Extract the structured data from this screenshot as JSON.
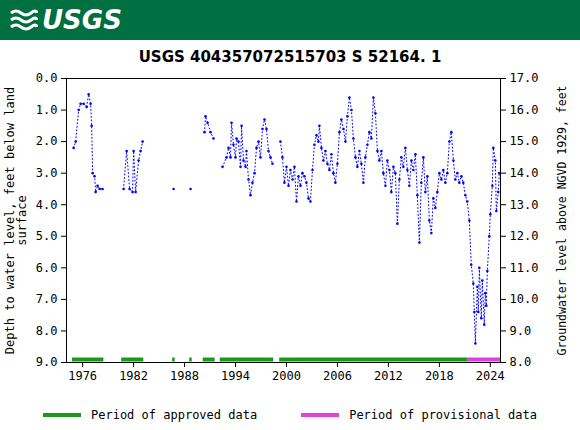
{
  "header": {
    "text": "USGS"
  },
  "chart_data": {
    "type": "line",
    "title": "USGS 404357072515703 S 52164. 1",
    "ylabel": "Depth to water level, feet below land\nsurface",
    "y2label": "Groundwater level above NGVD 1929, feet",
    "color": "#0000ff",
    "marker": "circle",
    "line_style": "dotted",
    "grid": false,
    "legend": "bottom",
    "xlim": [
      1974.1,
      2025.2
    ],
    "xticks": [
      1976,
      1982,
      1988,
      1994,
      2000,
      2006,
      2012,
      2018,
      2024
    ],
    "ylim": [
      9,
      0
    ],
    "yticks": [
      {
        "value": 0,
        "label": "0.0"
      },
      {
        "value": 1,
        "label": "1.0"
      },
      {
        "value": 2,
        "label": "2.0"
      },
      {
        "value": 3,
        "label": "3.0"
      },
      {
        "value": 4,
        "label": "4.0"
      },
      {
        "value": 5,
        "label": "5.0"
      },
      {
        "value": 6,
        "label": "6.0"
      },
      {
        "value": 7,
        "label": "7.0"
      },
      {
        "value": 8,
        "label": "8.0"
      },
      {
        "value": 9,
        "label": "9.0"
      }
    ],
    "y2lim": [
      8,
      17
    ],
    "y2ticks": [
      {
        "value": 8,
        "label": "8.0"
      },
      {
        "value": 9,
        "label": "9.0"
      },
      {
        "value": 10,
        "label": "10.0"
      },
      {
        "value": 11,
        "label": "11.0"
      },
      {
        "value": 12,
        "label": "12.0"
      },
      {
        "value": 13,
        "label": "13.0"
      },
      {
        "value": 14,
        "label": "14.0"
      },
      {
        "value": 15,
        "label": "15.0"
      },
      {
        "value": 16,
        "label": "16.0"
      },
      {
        "value": 17,
        "label": "17.0"
      }
    ],
    "x": [
      1974.94,
      1975.18,
      1975.53,
      1975.76,
      1976.12,
      1976.47,
      1976.71,
      1976.94,
      1977.06,
      1977.18,
      1977.41,
      1977.53,
      1977.76,
      1978.0,
      1978.35,
      1979.5,
      1980.82,
      1981.18,
      1981.53,
      1981.88,
      1982.0,
      1982.24,
      1982.59,
      1982.82,
      1983.06,
      1985.0,
      1986.71,
      1987.7,
      1988.71,
      1989.5,
      1990.35,
      1990.47,
      1990.71,
      1991.06,
      1991.41,
      1992.0,
      1992.47,
      1992.94,
      1993.18,
      1993.41,
      1993.53,
      1993.76,
      1994.0,
      1994.12,
      1994.35,
      1994.59,
      1994.71,
      1994.94,
      1995.18,
      1995.29,
      1995.53,
      1995.76,
      1996.0,
      1996.24,
      1996.47,
      1996.71,
      1996.94,
      1997.18,
      1997.41,
      1997.65,
      1997.88,
      1998.12,
      1998.35,
      1998.8,
      1999.29,
      1999.53,
      1999.76,
      2000.0,
      2000.24,
      2000.47,
      2000.71,
      2000.94,
      2001.18,
      2001.41,
      2001.65,
      2001.88,
      2002.12,
      2002.35,
      2002.59,
      2002.82,
      2003.06,
      2003.29,
      2003.53,
      2003.76,
      2003.88,
      2004.12,
      2004.35,
      2004.59,
      2004.82,
      2005.06,
      2005.29,
      2005.53,
      2005.76,
      2006.0,
      2006.24,
      2006.47,
      2006.71,
      2006.94,
      2007.18,
      2007.41,
      2007.65,
      2007.88,
      2008.12,
      2008.35,
      2008.59,
      2008.82,
      2009.06,
      2009.29,
      2009.53,
      2009.76,
      2010.0,
      2010.24,
      2010.47,
      2010.71,
      2010.94,
      2011.18,
      2011.41,
      2011.65,
      2011.88,
      2012.12,
      2012.35,
      2012.59,
      2012.82,
      2013.06,
      2013.29,
      2013.53,
      2013.76,
      2014.0,
      2014.24,
      2014.47,
      2014.71,
      2014.94,
      2015.18,
      2015.41,
      2015.65,
      2015.88,
      2016.12,
      2016.35,
      2016.59,
      2016.82,
      2017.06,
      2017.29,
      2017.53,
      2017.76,
      2018.0,
      2018.24,
      2018.47,
      2018.71,
      2018.94,
      2019.18,
      2019.41,
      2019.65,
      2019.88,
      2020.12,
      2020.35,
      2020.59,
      2020.82,
      2021.06,
      2021.29,
      2021.53,
      2021.76,
      2022.0,
      2022.12,
      2022.24,
      2022.47,
      2022.59,
      2022.71,
      2022.94,
      2023.06,
      2023.29,
      2023.41,
      2023.53,
      2023.65,
      2023.88,
      2024.0,
      2024.24,
      2024.35,
      2024.59,
      2024.71,
      2024.94,
      2025.06
    ],
    "values": [
      2.2,
      2.0,
      1.0,
      0.8,
      0.8,
      0.9,
      0.5,
      0.8,
      1.5,
      3.0,
      3.1,
      3.6,
      3.4,
      3.5,
      3.5,
      null,
      3.5,
      2.3,
      3.5,
      3.6,
      2.3,
      3.6,
      2.6,
      2.3,
      2.0,
      null,
      3.5,
      null,
      3.5,
      null,
      1.7,
      1.2,
      1.4,
      1.7,
      1.9,
      null,
      2.8,
      2.5,
      2.2,
      2.5,
      1.4,
      2.1,
      2.5,
      1.9,
      2.0,
      2.8,
      1.5,
      2.6,
      2.8,
      2.3,
      3.2,
      3.7,
      3.3,
      3.0,
      2.2,
      2.0,
      2.5,
      1.6,
      1.3,
      1.6,
      2.3,
      2.5,
      2.7,
      null,
      2.0,
      2.5,
      3.3,
      2.8,
      3.4,
      2.9,
      3.2,
      2.8,
      3.9,
      3.1,
      3.4,
      3.0,
      3.1,
      3.3,
      3.8,
      3.9,
      2.9,
      2.1,
      1.8,
      2.0,
      1.5,
      2.2,
      2.6,
      2.3,
      2.7,
      2.9,
      2.4,
      3.0,
      3.3,
      2.7,
      1.7,
      1.3,
      1.6,
      2.0,
      1.2,
      0.6,
      1.0,
      1.9,
      2.5,
      2.8,
      2.3,
      2.7,
      3.3,
      2.5,
      2.1,
      1.7,
      1.9,
      0.6,
      1.1,
      2.3,
      2.6,
      2.3,
      3.0,
      3.4,
      2.6,
      2.9,
      3.6,
      2.8,
      3.0,
      4.6,
      3.2,
      2.5,
      2.8,
      2.2,
      2.9,
      3.4,
      2.6,
      2.9,
      2.4,
      3.7,
      5.2,
      3.3,
      2.5,
      3.6,
      3.1,
      4.5,
      4.9,
      3.8,
      4.1,
      3.6,
      3.0,
      3.2,
      2.9,
      3.3,
      3.0,
      2.0,
      1.7,
      2.6,
      3.2,
      3.0,
      3.3,
      3.1,
      3.3,
      3.7,
      3.9,
      4.5,
      5.9,
      6.5,
      7.4,
      8.4,
      6.6,
      7.4,
      6.0,
      7.6,
      6.4,
      7.8,
      6.8,
      7.2,
      6.1,
      5.0,
      4.3,
      3.4,
      2.2,
      2.6,
      4.2,
      3.6,
      3.0
    ],
    "periods": [
      {
        "name": "Period of approved data",
        "color": "#1a9a1a",
        "ranges": [
          [
            1974.8,
            1978.5
          ],
          [
            1980.6,
            1983.2
          ],
          [
            1986.6,
            1986.9
          ],
          [
            1988.6,
            1988.9
          ],
          [
            1990.2,
            1991.6
          ],
          [
            1992.2,
            1998.5
          ],
          [
            1999.2,
            2021.4
          ]
        ]
      },
      {
        "name": "Period of provisional data",
        "color": "#e040e0",
        "ranges": [
          [
            2021.4,
            2025.2
          ]
        ]
      }
    ]
  }
}
